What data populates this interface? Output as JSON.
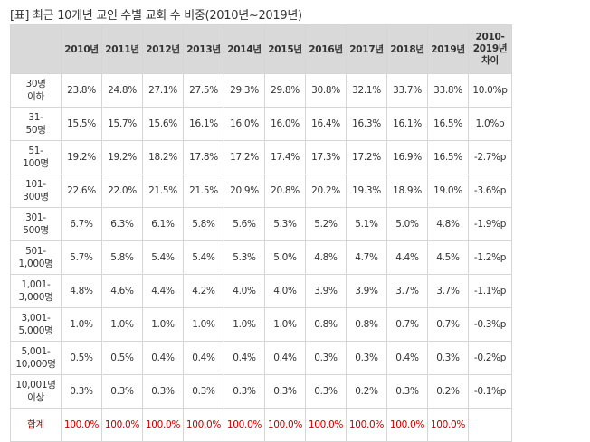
{
  "caption": "[표] 최근 10개년 교인 수별 교회 수 비중(2010년~2019년)",
  "table": {
    "corner": "",
    "years": [
      "2010년",
      "2011년",
      "2012년",
      "2013년",
      "2014년",
      "2015년",
      "2016년",
      "2017년",
      "2018년",
      "2019년"
    ],
    "diff_header": [
      "2010-",
      "2019년",
      "차이"
    ],
    "rows": [
      {
        "label": [
          "30명",
          "이하"
        ],
        "values": [
          "23.8%",
          "24.8%",
          "27.1%",
          "27.5%",
          "29.3%",
          "29.8%",
          "30.8%",
          "32.1%",
          "33.7%",
          "33.8%"
        ],
        "diff": "10.0%p"
      },
      {
        "label": [
          "31-",
          "50명"
        ],
        "values": [
          "15.5%",
          "15.7%",
          "15.6%",
          "16.1%",
          "16.0%",
          "16.0%",
          "16.4%",
          "16.3%",
          "16.1%",
          "16.5%"
        ],
        "diff": "1.0%p"
      },
      {
        "label": [
          "51-",
          "100명"
        ],
        "values": [
          "19.2%",
          "19.2%",
          "18.2%",
          "17.8%",
          "17.2%",
          "17.4%",
          "17.3%",
          "17.2%",
          "16.9%",
          "16.5%"
        ],
        "diff": "-2.7%p"
      },
      {
        "label": [
          "101-",
          "300명"
        ],
        "values": [
          "22.6%",
          "22.0%",
          "21.5%",
          "21.5%",
          "20.9%",
          "20.8%",
          "20.2%",
          "19.3%",
          "18.9%",
          "19.0%"
        ],
        "diff": "-3.6%p"
      },
      {
        "label": [
          "301-",
          "500명"
        ],
        "values": [
          "6.7%",
          "6.3%",
          "6.1%",
          "5.8%",
          "5.6%",
          "5.3%",
          "5.2%",
          "5.1%",
          "5.0%",
          "4.8%"
        ],
        "diff": "-1.9%p"
      },
      {
        "label": [
          "501-",
          "1,000명"
        ],
        "values": [
          "5.7%",
          "5.8%",
          "5.4%",
          "5.4%",
          "5.3%",
          "5.0%",
          "4.8%",
          "4.7%",
          "4.4%",
          "4.5%"
        ],
        "diff": "-1.2%p"
      },
      {
        "label": [
          "1,001-",
          "3,000명"
        ],
        "values": [
          "4.8%",
          "4.6%",
          "4.4%",
          "4.2%",
          "4.0%",
          "4.0%",
          "3.9%",
          "3.9%",
          "3.7%",
          "3.7%"
        ],
        "diff": "-1.1%p"
      },
      {
        "label": [
          "3,001-",
          "5,000명"
        ],
        "values": [
          "1.0%",
          "1.0%",
          "1.0%",
          "1.0%",
          "1.0%",
          "1.0%",
          "0.8%",
          "0.8%",
          "0.7%",
          "0.7%"
        ],
        "diff": "-0.3%p"
      },
      {
        "label": [
          "5,001-",
          "10,000명"
        ],
        "values": [
          "0.5%",
          "0.5%",
          "0.4%",
          "0.4%",
          "0.4%",
          "0.4%",
          "0.3%",
          "0.3%",
          "0.4%",
          "0.3%"
        ],
        "diff": "-0.2%p"
      },
      {
        "label": [
          "10,001명",
          "이상"
        ],
        "values": [
          "0.3%",
          "0.3%",
          "0.3%",
          "0.3%",
          "0.3%",
          "0.3%",
          "0.3%",
          "0.2%",
          "0.3%",
          "0.2%"
        ],
        "diff": "-0.1%p"
      }
    ],
    "total": {
      "label": "합계",
      "values": [
        "100.0%",
        "100.0%",
        "100.0%",
        "100.0%",
        "100.0%",
        "100.0%",
        "100.0%",
        "100.0%",
        "100.0%",
        "100.0%"
      ],
      "diff": ""
    }
  }
}
